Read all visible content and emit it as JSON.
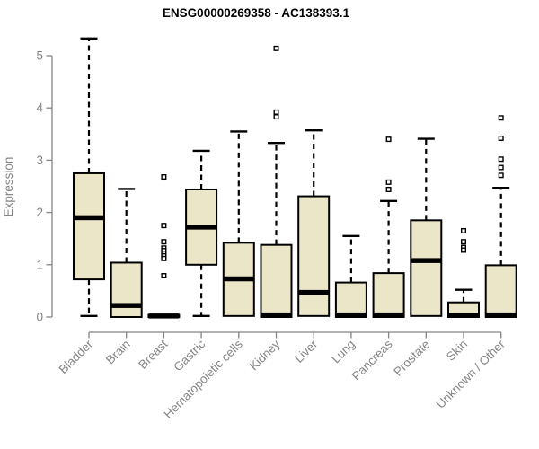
{
  "chart_data": {
    "type": "boxplot",
    "title": "ENSG00000269358 - AC138393.1",
    "ylabel": "Expression",
    "xlabel": "",
    "ylim": [
      0,
      5.5
    ],
    "yticks": [
      0,
      1,
      2,
      3,
      4,
      5
    ],
    "grid": false,
    "legend": "none",
    "categories": [
      "Bladder",
      "Brain",
      "Breast",
      "Gastric",
      "Hematopoietic cells",
      "Kidney",
      "Liver",
      "Lung",
      "Pancreas",
      "Prostate",
      "Skin",
      "Unknown / Other"
    ],
    "series": [
      {
        "name": "Bladder",
        "whisker_low": 0.02,
        "q1": 0.72,
        "median": 1.9,
        "q3": 2.75,
        "whisker_high": 5.33,
        "outliers": []
      },
      {
        "name": "Brain",
        "whisker_low": 0.0,
        "q1": 0.0,
        "median": 0.22,
        "q3": 1.04,
        "whisker_high": 2.45,
        "outliers": []
      },
      {
        "name": "Breast",
        "whisker_low": 0.0,
        "q1": 0.0,
        "median": 0.02,
        "q3": 0.04,
        "whisker_high": 0.04,
        "outliers": [
          2.68,
          1.75,
          1.44,
          1.32,
          1.27,
          1.22,
          1.17,
          1.12,
          0.79
        ]
      },
      {
        "name": "Gastric",
        "whisker_low": 0.02,
        "q1": 1.0,
        "median": 1.72,
        "q3": 2.44,
        "whisker_high": 3.18,
        "outliers": []
      },
      {
        "name": "Hematopoietic cells",
        "whisker_low": 0.0,
        "q1": 0.02,
        "median": 0.73,
        "q3": 1.42,
        "whisker_high": 3.55,
        "outliers": []
      },
      {
        "name": "Kidney",
        "whisker_low": 0.0,
        "q1": 0.0,
        "median": 0.04,
        "q3": 1.38,
        "whisker_high": 3.33,
        "outliers": [
          5.14,
          3.92,
          3.83
        ]
      },
      {
        "name": "Liver",
        "whisker_low": 0.0,
        "q1": 0.02,
        "median": 0.47,
        "q3": 2.31,
        "whisker_high": 3.57,
        "outliers": []
      },
      {
        "name": "Lung",
        "whisker_low": 0.0,
        "q1": 0.0,
        "median": 0.04,
        "q3": 0.66,
        "whisker_high": 1.55,
        "outliers": []
      },
      {
        "name": "Pancreas",
        "whisker_low": 0.0,
        "q1": 0.0,
        "median": 0.04,
        "q3": 0.84,
        "whisker_high": 2.22,
        "outliers": [
          3.4,
          2.58,
          2.44
        ]
      },
      {
        "name": "Prostate",
        "whisker_low": 0.0,
        "q1": 0.02,
        "median": 1.08,
        "q3": 1.85,
        "whisker_high": 3.41,
        "outliers": []
      },
      {
        "name": "Skin",
        "whisker_low": 0.0,
        "q1": 0.0,
        "median": 0.03,
        "q3": 0.28,
        "whisker_high": 0.52,
        "outliers": [
          1.65,
          1.44,
          1.33,
          1.28
        ]
      },
      {
        "name": "Unknown / Other",
        "whisker_low": 0.0,
        "q1": 0.0,
        "median": 0.04,
        "q3": 0.99,
        "whisker_high": 2.47,
        "outliers": [
          3.81,
          3.42,
          3.02,
          2.86,
          2.71
        ]
      }
    ],
    "colors": {
      "box_fill": "#ece6c9",
      "box_border": "#000000",
      "median": "#000000",
      "whisker": "#000000",
      "outlier_border": "#000000",
      "outlier_fill": "#ffffff",
      "axis": "#858585",
      "tick_label": "#858585",
      "title": "#000000",
      "background": "#ffffff"
    }
  }
}
